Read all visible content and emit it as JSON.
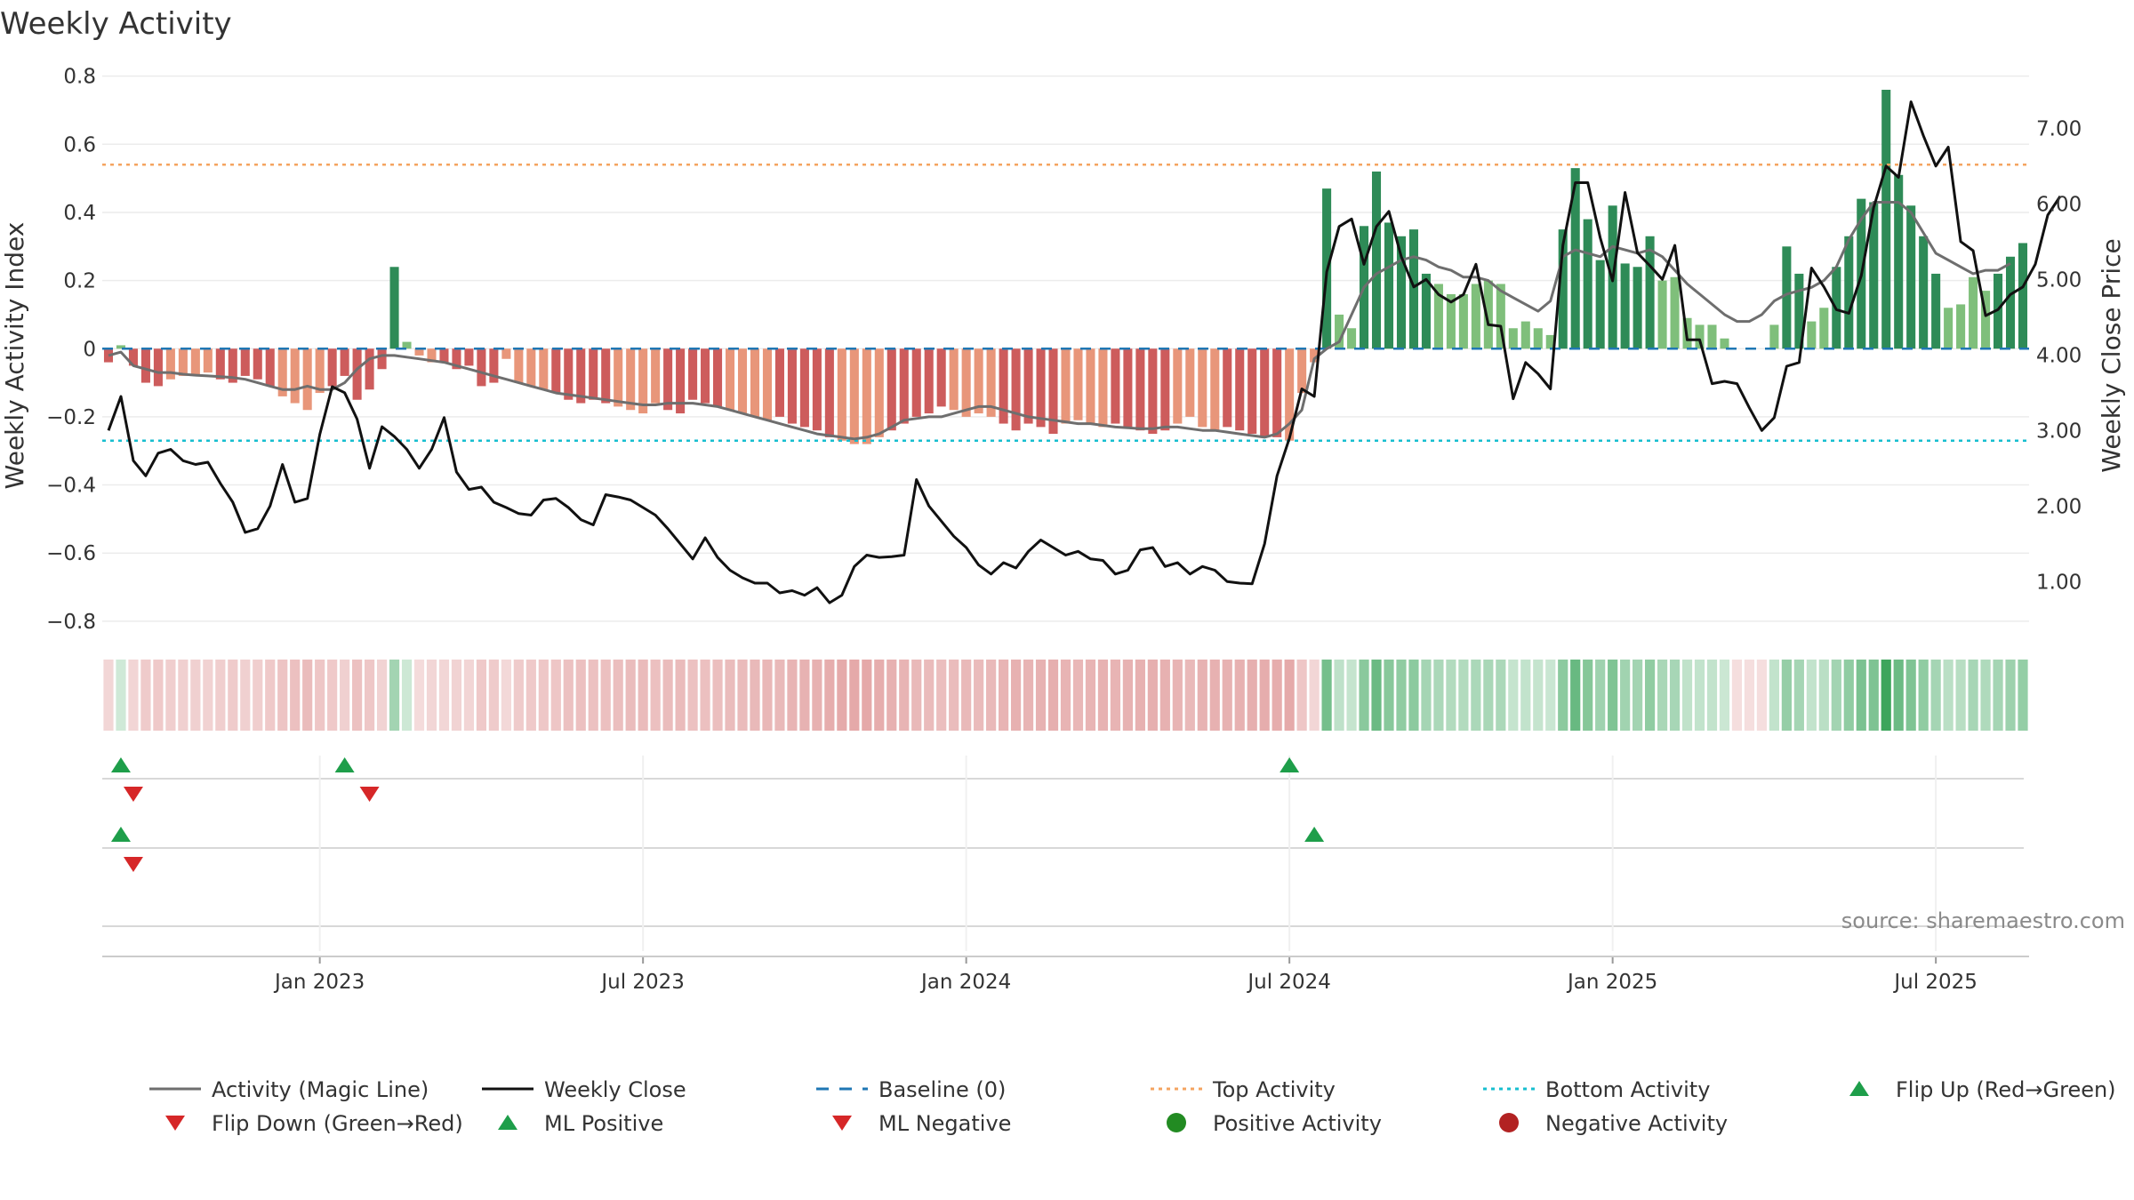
{
  "chart_data": {
    "type": "bar",
    "title": "Weekly Activity",
    "ylabel": "Weekly Activity Index",
    "y2label": "Weekly Close Price",
    "ylim": [
      -0.85,
      0.82
    ],
    "y2lim": [
      0.25,
      7.78
    ],
    "yticks": [
      {
        "v": 0.8,
        "label": "0.8"
      },
      {
        "v": 0.6,
        "label": "0.6"
      },
      {
        "v": 0.4,
        "label": "0.4"
      },
      {
        "v": 0.2,
        "label": "0.2"
      },
      {
        "v": 0,
        "label": "0"
      },
      {
        "v": -0.2,
        "label": "−0.2"
      },
      {
        "v": -0.4,
        "label": "−0.4"
      },
      {
        "v": -0.6,
        "label": "−0.6"
      },
      {
        "v": -0.8,
        "label": "−0.8"
      }
    ],
    "y2ticks": [
      {
        "v": 7,
        "label": "7.00"
      },
      {
        "v": 6,
        "label": "6.00"
      },
      {
        "v": 5,
        "label": "5.00"
      },
      {
        "v": 4,
        "label": "4.00"
      },
      {
        "v": 3,
        "label": "3.00"
      },
      {
        "v": 2,
        "label": "2.00"
      },
      {
        "v": 1,
        "label": "1.00"
      }
    ],
    "xticks": [
      {
        "week": 17,
        "label": "Jan 2023"
      },
      {
        "week": 43,
        "label": "Jul 2023"
      },
      {
        "week": 69,
        "label": "Jan 2024"
      },
      {
        "week": 95,
        "label": "Jul 2024"
      },
      {
        "week": 121,
        "label": "Jan 2025"
      },
      {
        "week": 147,
        "label": "Jul 2025"
      }
    ],
    "top_activity": 0.54,
    "bottom_activity": -0.27,
    "source": "source: sharemaestro.com",
    "colors": {
      "neg_dark": "#cd5c5c",
      "neg_light": "#e8967a",
      "pos_dark": "#2e8b57",
      "pos_light": "#7fbf7b",
      "magic": "#6e6e6e",
      "close": "#111111",
      "baseline": "#1f77b4",
      "top": "#f4a460",
      "bottom": "#17becf",
      "flip_up": "#1e9e4a",
      "flip_down": "#d62728"
    },
    "activity": [
      -0.04,
      0.01,
      -0.05,
      -0.1,
      -0.11,
      -0.09,
      -0.08,
      -0.08,
      -0.07,
      -0.09,
      -0.1,
      -0.08,
      -0.09,
      -0.11,
      -0.14,
      -0.16,
      -0.18,
      -0.13,
      -0.11,
      -0.08,
      -0.15,
      -0.12,
      -0.06,
      0.24,
      0.02,
      -0.02,
      -0.04,
      -0.04,
      -0.06,
      -0.05,
      -0.11,
      -0.1,
      -0.03,
      -0.1,
      -0.11,
      -0.12,
      -0.13,
      -0.15,
      -0.16,
      -0.15,
      -0.16,
      -0.17,
      -0.18,
      -0.19,
      -0.16,
      -0.18,
      -0.19,
      -0.15,
      -0.16,
      -0.17,
      -0.18,
      -0.19,
      -0.2,
      -0.21,
      -0.2,
      -0.22,
      -0.23,
      -0.24,
      -0.26,
      -0.27,
      -0.28,
      -0.28,
      -0.26,
      -0.24,
      -0.22,
      -0.2,
      -0.19,
      -0.17,
      -0.18,
      -0.2,
      -0.19,
      -0.2,
      -0.22,
      -0.24,
      -0.22,
      -0.23,
      -0.25,
      -0.22,
      -0.21,
      -0.22,
      -0.23,
      -0.22,
      -0.23,
      -0.24,
      -0.25,
      -0.24,
      -0.22,
      -0.2,
      -0.23,
      -0.24,
      -0.23,
      -0.24,
      -0.25,
      -0.26,
      -0.26,
      -0.27,
      -0.13,
      -0.04,
      0.47,
      0.1,
      0.06,
      0.36,
      0.52,
      0.37,
      0.33,
      0.35,
      0.22,
      0.19,
      0.16,
      0.16,
      0.19,
      0.2,
      0.19,
      0.06,
      0.08,
      0.06,
      0.04,
      0.35,
      0.53,
      0.38,
      0.26,
      0.42,
      0.25,
      0.24,
      0.33,
      0.2,
      0.21,
      0.09,
      0.07,
      0.07,
      0.03,
      0.0,
      0.0,
      0.0,
      0.07,
      0.3,
      0.22,
      0.08,
      0.12,
      0.24,
      0.33,
      0.44,
      0.43,
      0.76,
      0.51,
      0.42,
      0.33,
      0.22,
      0.12,
      0.13,
      0.21,
      0.17,
      0.22,
      0.27,
      0.31
    ],
    "magic_line": [
      -0.02,
      -0.01,
      -0.05,
      -0.06,
      -0.07,
      -0.07,
      -0.075,
      -0.078,
      -0.08,
      -0.082,
      -0.085,
      -0.09,
      -0.1,
      -0.11,
      -0.12,
      -0.12,
      -0.11,
      -0.12,
      -0.12,
      -0.1,
      -0.06,
      -0.03,
      -0.02,
      -0.02,
      -0.025,
      -0.03,
      -0.035,
      -0.04,
      -0.05,
      -0.06,
      -0.07,
      -0.08,
      -0.09,
      -0.1,
      -0.11,
      -0.12,
      -0.13,
      -0.135,
      -0.14,
      -0.145,
      -0.15,
      -0.155,
      -0.16,
      -0.165,
      -0.165,
      -0.16,
      -0.16,
      -0.16,
      -0.165,
      -0.17,
      -0.18,
      -0.19,
      -0.2,
      -0.21,
      -0.22,
      -0.23,
      -0.24,
      -0.25,
      -0.255,
      -0.26,
      -0.265,
      -0.26,
      -0.25,
      -0.23,
      -0.21,
      -0.205,
      -0.2,
      -0.2,
      -0.19,
      -0.18,
      -0.17,
      -0.17,
      -0.18,
      -0.19,
      -0.2,
      -0.205,
      -0.21,
      -0.215,
      -0.22,
      -0.22,
      -0.225,
      -0.23,
      -0.232,
      -0.235,
      -0.235,
      -0.23,
      -0.23,
      -0.235,
      -0.24,
      -0.24,
      -0.245,
      -0.25,
      -0.255,
      -0.26,
      -0.25,
      -0.22,
      -0.18,
      -0.03,
      0.0,
      0.02,
      0.1,
      0.18,
      0.22,
      0.24,
      0.26,
      0.27,
      0.26,
      0.24,
      0.23,
      0.21,
      0.21,
      0.2,
      0.17,
      0.15,
      0.13,
      0.11,
      0.14,
      0.27,
      0.29,
      0.28,
      0.27,
      0.3,
      0.29,
      0.28,
      0.29,
      0.27,
      0.23,
      0.19,
      0.16,
      0.13,
      0.1,
      0.08,
      0.08,
      0.1,
      0.14,
      0.16,
      0.17,
      0.18,
      0.2,
      0.24,
      0.32,
      0.38,
      0.43,
      0.43,
      0.43,
      0.4,
      0.34,
      0.28,
      0.26,
      0.24,
      0.22,
      0.23,
      0.23,
      0.25
    ],
    "weekly_close": [
      3.0,
      3.45,
      2.6,
      2.4,
      2.7,
      2.75,
      2.6,
      2.55,
      2.58,
      2.3,
      2.05,
      1.65,
      1.7,
      2.0,
      2.55,
      2.05,
      2.1,
      2.95,
      3.58,
      3.5,
      3.15,
      2.5,
      3.05,
      2.92,
      2.75,
      2.5,
      2.75,
      3.17,
      2.45,
      2.22,
      2.25,
      2.05,
      1.98,
      1.9,
      1.88,
      2.08,
      2.1,
      1.98,
      1.82,
      1.75,
      2.15,
      2.12,
      2.08,
      1.98,
      1.88,
      1.7,
      1.5,
      1.3,
      1.58,
      1.32,
      1.15,
      1.05,
      0.98,
      0.98,
      0.85,
      0.88,
      0.82,
      0.92,
      0.72,
      0.82,
      1.2,
      1.35,
      1.32,
      1.33,
      1.35,
      2.35,
      2.0,
      1.8,
      1.6,
      1.45,
      1.22,
      1.1,
      1.25,
      1.18,
      1.4,
      1.55,
      1.45,
      1.35,
      1.4,
      1.3,
      1.28,
      1.1,
      1.15,
      1.42,
      1.45,
      1.2,
      1.25,
      1.1,
      1.2,
      1.15,
      1.0,
      0.98,
      0.97,
      1.5,
      2.4,
      2.9,
      3.55,
      3.45,
      5.1,
      5.7,
      5.8,
      5.2,
      5.7,
      5.9,
      5.3,
      4.9,
      5.0,
      4.8,
      4.7,
      4.8,
      5.2,
      4.4,
      4.38,
      3.42,
      3.9,
      3.75,
      3.55,
      5.45,
      6.28,
      6.28,
      5.55,
      4.98,
      6.15,
      5.35,
      5.18,
      5.0,
      5.45,
      4.2,
      4.2,
      3.62,
      3.65,
      3.62,
      3.3,
      3.0,
      3.17,
      3.85,
      3.9,
      5.15,
      4.9,
      4.6,
      4.55,
      5.05,
      5.95,
      6.5,
      6.35,
      7.35,
      6.9,
      6.5,
      6.75,
      5.5,
      5.38,
      4.52,
      4.6,
      4.8,
      4.9,
      5.2,
      5.85,
      6.1
    ],
    "flip_up_1": [
      1,
      19,
      95
    ],
    "flip_down_1": [
      2,
      21
    ],
    "flip_up_2": [
      1,
      97
    ],
    "flip_down_2": [
      2
    ],
    "legend": [
      {
        "key": "magic",
        "marker": "line",
        "label": "Activity (Magic Line)"
      },
      {
        "key": "close",
        "marker": "line",
        "label": "Weekly Close"
      },
      {
        "key": "baseline",
        "marker": "dash",
        "label": "Baseline (0)"
      },
      {
        "key": "top",
        "marker": "dot-line",
        "label": "Top Activity"
      },
      {
        "key": "bottom",
        "marker": "dot-line",
        "label": "Bottom Activity"
      },
      {
        "key": "flip_up",
        "marker": "tri-up",
        "label": "Flip Up (Red→Green)"
      },
      {
        "key": "flip_down",
        "marker": "tri-down",
        "label": "Flip Down (Green→Red)"
      },
      {
        "key": "flip_up",
        "marker": "tri-up",
        "label": "ML Positive"
      },
      {
        "key": "flip_down",
        "marker": "tri-down",
        "label": "ML Negative"
      },
      {
        "key": "flip_up",
        "marker": "circle",
        "label": "Positive Activity"
      },
      {
        "key": "flip_down",
        "marker": "circle",
        "label": "Negative Activity"
      }
    ]
  }
}
